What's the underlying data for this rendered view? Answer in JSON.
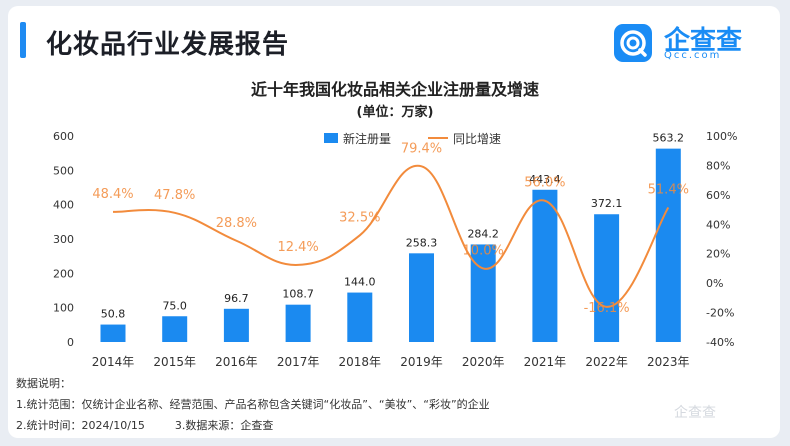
{
  "header": {
    "title": "化妆品行业发展报告",
    "brand_name": "企查查",
    "brand_domain": "Qcc.com"
  },
  "chart_data": {
    "type": "bar",
    "title": "近十年我国化妆品相关企业注册量及增速",
    "subtitle": "(单位：万家)",
    "categories": [
      "2014年",
      "2015年",
      "2016年",
      "2017年",
      "2018年",
      "2019年",
      "2020年",
      "2021年",
      "2022年",
      "2023年"
    ],
    "series": [
      {
        "name": "新注册量",
        "type": "bar",
        "axis": "left",
        "color": "#1b8af0",
        "values": [
          50.8,
          75.0,
          96.7,
          108.7,
          144.0,
          258.3,
          284.2,
          443.4,
          372.1,
          563.2
        ],
        "labels": [
          "50.8",
          "75.0",
          "96.7",
          "108.7",
          "144.0",
          "258.3",
          "284.2",
          "443.4",
          "372.1",
          "563.2"
        ]
      },
      {
        "name": "同比增速",
        "type": "line",
        "axis": "right",
        "color": "#f28b3c",
        "values": [
          48.4,
          47.8,
          28.8,
          12.4,
          32.5,
          79.4,
          10.0,
          56.0,
          -16.1,
          51.4
        ],
        "labels": [
          "48.4%",
          "47.8%",
          "28.8%",
          "12.4%",
          "32.5%",
          "79.4%",
          "10.0%",
          "56.0%",
          "-16.1%",
          "51.4%"
        ]
      }
    ],
    "y_left": {
      "min": 0,
      "max": 600,
      "ticks": [
        "0",
        "100",
        "200",
        "300",
        "400",
        "500",
        "600"
      ]
    },
    "y_right": {
      "min": -40,
      "max": 100,
      "ticks": [
        "-40%",
        "-20%",
        "0%",
        "20%",
        "40%",
        "60%",
        "80%",
        "100%"
      ]
    },
    "legend": "top-center",
    "grid": false
  },
  "notes": {
    "heading": "数据说明：",
    "line1": "1.统计范围：仅统计企业名称、经营范围、产品名称包含关键词“化妆品”、“美妆”、“彩妆”的企业",
    "line2a": "2.统计时间：2024/10/15",
    "line2b": "3.数据来源：企查查"
  },
  "watermark": "企查查"
}
